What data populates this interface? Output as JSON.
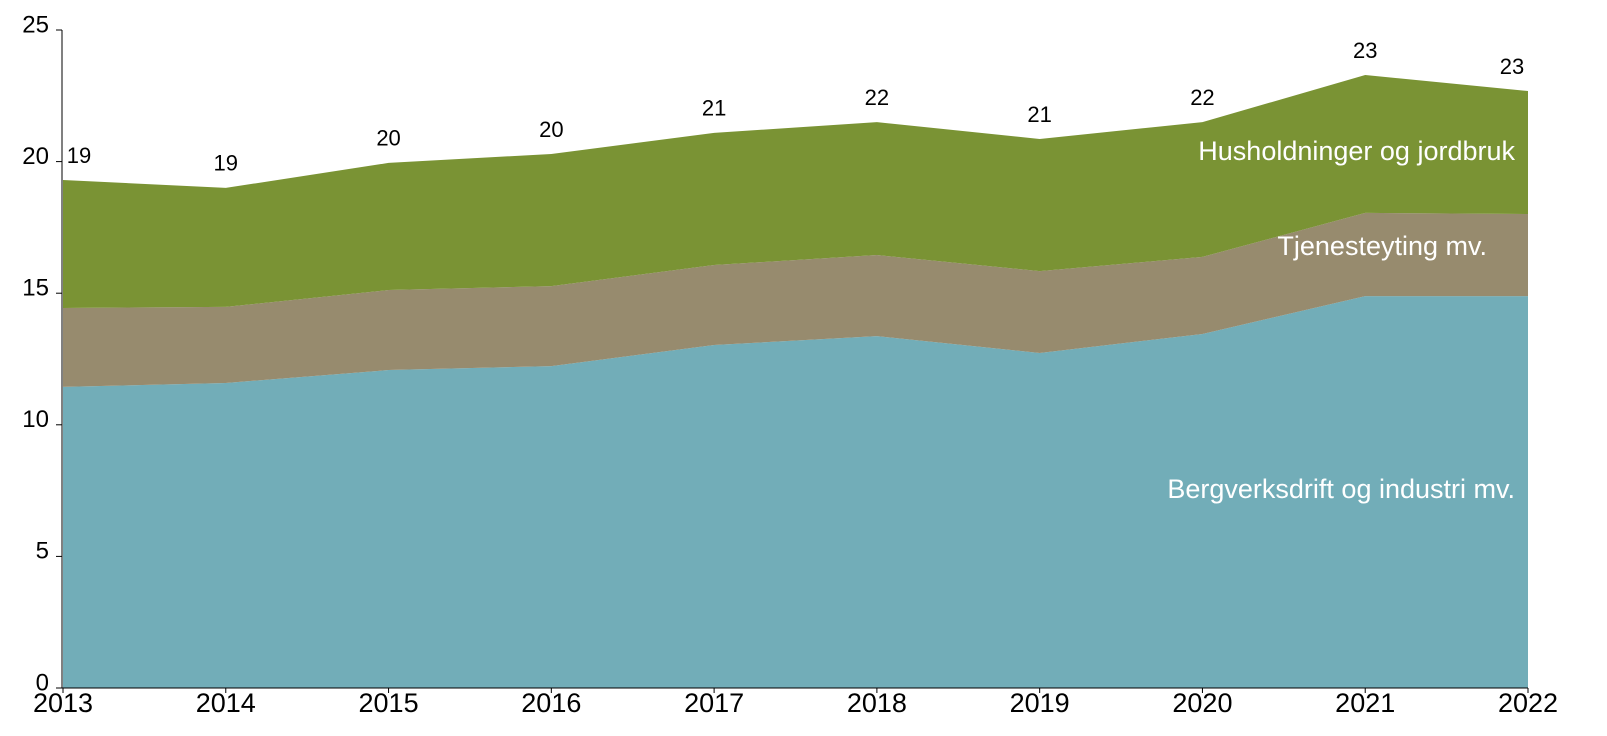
{
  "chart_data": {
    "type": "stacked_area",
    "x": [
      2013,
      2014,
      2015,
      2016,
      2017,
      2018,
      2019,
      2020,
      2021,
      2022
    ],
    "xlim": [
      2013,
      2022
    ],
    "xticks": [
      2013,
      2014,
      2015,
      2016,
      2017,
      2018,
      2019,
      2020,
      2021,
      2022
    ],
    "ylim": [
      0,
      25
    ],
    "yticks": [
      0,
      5,
      10,
      15,
      20,
      25
    ],
    "series": [
      {
        "name": "Bergverksdrift og industri mv.",
        "color": "#72adb8",
        "values": [
          11.44,
          11.59,
          12.08,
          12.23,
          13.03,
          13.37,
          12.73,
          13.45,
          14.89,
          14.89
        ]
      },
      {
        "name": "Tjenesteyting mv.",
        "color": "#978b6e",
        "values": [
          3.0,
          2.89,
          3.04,
          3.04,
          3.04,
          3.08,
          3.11,
          2.93,
          3.16,
          3.12
        ]
      },
      {
        "name": "Husholdninger og jordbruk",
        "color": "#7a9334",
        "values": [
          4.86,
          4.52,
          4.83,
          5.02,
          5.02,
          5.05,
          5.02,
          5.12,
          5.24,
          4.67
        ]
      }
    ],
    "totals": [
      19.3,
      19.0,
      19.95,
      20.29,
      21.09,
      21.5,
      20.86,
      21.5,
      23.29,
      22.68
    ],
    "totals_labels": [
      "19",
      "19",
      "20",
      "20",
      "21",
      "22",
      "21",
      "22",
      "23",
      "23"
    ]
  }
}
